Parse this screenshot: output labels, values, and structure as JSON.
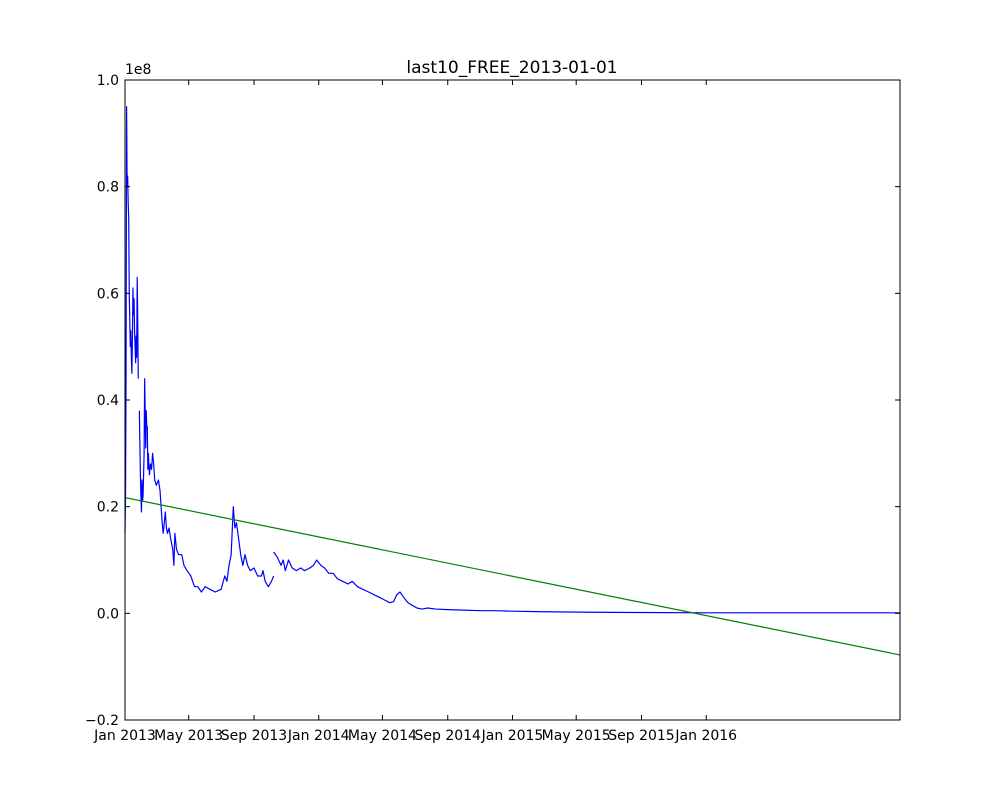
{
  "chart_data": {
    "type": "line",
    "title": "last10_FREE_2013-01-01",
    "xlabel": "",
    "ylabel": "",
    "y_offset_label": "1e8",
    "x_range": [
      "2013-01-01",
      "2016-12-31"
    ],
    "ylim": [
      -0.2,
      1.0
    ],
    "y_ticks": [
      {
        "value": -0.2,
        "label": "−0.2"
      },
      {
        "value": 0.0,
        "label": "0.0"
      },
      {
        "value": 0.2,
        "label": "0.2"
      },
      {
        "value": 0.4,
        "label": "0.4"
      },
      {
        "value": 0.6,
        "label": "0.6"
      },
      {
        "value": 0.8,
        "label": "0.8"
      },
      {
        "value": 1.0,
        "label": "1.0"
      }
    ],
    "x_ticks": [
      {
        "value": "2013-01-01",
        "label": "Jan 2013"
      },
      {
        "value": "2013-05-01",
        "label": "May 2013"
      },
      {
        "value": "2013-09-01",
        "label": "Sep 2013"
      },
      {
        "value": "2014-01-01",
        "label": "Jan 2014"
      },
      {
        "value": "2014-05-01",
        "label": "May 2014"
      },
      {
        "value": "2014-09-01",
        "label": "Sep 2014"
      },
      {
        "value": "2015-01-01",
        "label": "Jan 2015"
      },
      {
        "value": "2015-05-01",
        "label": "May 2015"
      },
      {
        "value": "2015-09-01",
        "label": "Sep 2015"
      },
      {
        "value": "2016-01-01",
        "label": "Jan 2016"
      }
    ],
    "grid": false,
    "series": [
      {
        "color": "#0000ff",
        "segments": [
          [
            [
              "2013-01-01",
              0.15
            ],
            [
              "2013-01-02",
              0.22
            ],
            [
              "2013-01-03",
              0.45
            ],
            [
              "2013-01-04",
              0.95
            ],
            [
              "2013-01-05",
              0.8
            ],
            [
              "2013-01-06",
              0.82
            ],
            [
              "2013-01-07",
              0.77
            ],
            [
              "2013-01-08",
              0.74
            ],
            [
              "2013-01-09",
              0.6
            ],
            [
              "2013-01-10",
              0.55
            ],
            [
              "2013-01-11",
              0.5
            ],
            [
              "2013-01-12",
              0.53
            ],
            [
              "2013-01-13",
              0.48
            ],
            [
              "2013-01-14",
              0.45
            ],
            [
              "2013-01-15",
              0.52
            ],
            [
              "2013-01-16",
              0.61
            ],
            [
              "2013-01-17",
              0.56
            ],
            [
              "2013-01-18",
              0.59
            ],
            [
              "2013-01-19",
              0.53
            ],
            [
              "2013-01-20",
              0.5
            ],
            [
              "2013-01-21",
              0.47
            ],
            [
              "2013-01-22",
              0.52
            ],
            [
              "2013-01-23",
              0.48
            ],
            [
              "2013-01-24",
              0.63
            ],
            [
              "2013-01-25",
              0.55
            ],
            [
              "2013-01-26",
              0.44
            ]
          ],
          [
            [
              "2013-01-28",
              0.38
            ],
            [
              "2013-01-29",
              0.32
            ],
            [
              "2013-01-30",
              0.26
            ],
            [
              "2013-01-31",
              0.22
            ],
            [
              "2013-02-01",
              0.19
            ],
            [
              "2013-02-02",
              0.25
            ],
            [
              "2013-02-03",
              0.21
            ],
            [
              "2013-02-04",
              0.22
            ],
            [
              "2013-02-06",
              0.3
            ],
            [
              "2013-02-07",
              0.44
            ],
            [
              "2013-02-08",
              0.38
            ],
            [
              "2013-02-09",
              0.31
            ],
            [
              "2013-02-10",
              0.38
            ],
            [
              "2013-02-11",
              0.35
            ],
            [
              "2013-02-12",
              0.35
            ],
            [
              "2013-02-13",
              0.27
            ],
            [
              "2013-02-14",
              0.3
            ],
            [
              "2013-02-16",
              0.26
            ],
            [
              "2013-02-18",
              0.28
            ],
            [
              "2013-02-20",
              0.27
            ],
            [
              "2013-02-22",
              0.3
            ],
            [
              "2013-02-24",
              0.28
            ],
            [
              "2013-02-26",
              0.25
            ],
            [
              "2013-03-01",
              0.24
            ],
            [
              "2013-03-05",
              0.25
            ],
            [
              "2013-03-08",
              0.23
            ],
            [
              "2013-03-10",
              0.2
            ],
            [
              "2013-03-12",
              0.17
            ],
            [
              "2013-03-14",
              0.15
            ],
            [
              "2013-03-16",
              0.17
            ],
            [
              "2013-03-18",
              0.19
            ],
            [
              "2013-03-20",
              0.16
            ],
            [
              "2013-03-22",
              0.15
            ],
            [
              "2013-03-25",
              0.16
            ],
            [
              "2013-03-28",
              0.14
            ],
            [
              "2013-04-01",
              0.12
            ],
            [
              "2013-04-03",
              0.09
            ],
            [
              "2013-04-05",
              0.15
            ],
            [
              "2013-04-08",
              0.12
            ],
            [
              "2013-04-12",
              0.11
            ],
            [
              "2013-04-18",
              0.11
            ],
            [
              "2013-04-22",
              0.09
            ],
            [
              "2013-04-28",
              0.08
            ],
            [
              "2013-05-05",
              0.07
            ],
            [
              "2013-05-12",
              0.05
            ],
            [
              "2013-05-18",
              0.05
            ],
            [
              "2013-05-25",
              0.04
            ],
            [
              "2013-06-01",
              0.05
            ],
            [
              "2013-06-10",
              0.045
            ],
            [
              "2013-06-20",
              0.04
            ],
            [
              "2013-07-01",
              0.045
            ],
            [
              "2013-07-08",
              0.07
            ],
            [
              "2013-07-12",
              0.06
            ],
            [
              "2013-07-16",
              0.09
            ],
            [
              "2013-07-20",
              0.11
            ],
            [
              "2013-07-24",
              0.2
            ],
            [
              "2013-07-27",
              0.16
            ],
            [
              "2013-07-30",
              0.17
            ],
            [
              "2013-08-03",
              0.14
            ],
            [
              "2013-08-07",
              0.11
            ],
            [
              "2013-08-11",
              0.09
            ],
            [
              "2013-08-15",
              0.11
            ],
            [
              "2013-08-20",
              0.09
            ],
            [
              "2013-08-25",
              0.08
            ],
            [
              "2013-09-01",
              0.085
            ],
            [
              "2013-09-08",
              0.07
            ],
            [
              "2013-09-15",
              0.07
            ],
            [
              "2013-09-18",
              0.08
            ],
            [
              "2013-09-22",
              0.06
            ],
            [
              "2013-09-28",
              0.05
            ],
            [
              "2013-10-04",
              0.06
            ],
            [
              "2013-10-08",
              0.07
            ]
          ],
          [
            [
              "2013-10-08",
              0.115
            ],
            [
              "2013-10-15",
              0.105
            ],
            [
              "2013-10-22",
              0.09
            ],
            [
              "2013-10-26",
              0.1
            ],
            [
              "2013-10-30",
              0.08
            ],
            [
              "2013-11-05",
              0.1
            ],
            [
              "2013-11-12",
              0.085
            ],
            [
              "2013-11-20",
              0.08
            ],
            [
              "2013-11-28",
              0.085
            ],
            [
              "2013-12-05",
              0.08
            ],
            [
              "2013-12-15",
              0.085
            ],
            [
              "2013-12-22",
              0.09
            ],
            [
              "2013-12-28",
              0.1
            ],
            [
              "2014-01-05",
              0.09
            ],
            [
              "2014-01-12",
              0.085
            ],
            [
              "2014-01-20",
              0.075
            ],
            [
              "2014-01-28",
              0.075
            ],
            [
              "2014-02-05",
              0.065
            ],
            [
              "2014-02-15",
              0.06
            ],
            [
              "2014-02-25",
              0.055
            ],
            [
              "2014-03-05",
              0.06
            ],
            [
              "2014-03-15",
              0.05
            ],
            [
              "2014-03-25",
              0.045
            ],
            [
              "2014-04-05",
              0.04
            ],
            [
              "2014-04-15",
              0.035
            ],
            [
              "2014-04-25",
              0.03
            ],
            [
              "2014-05-05",
              0.025
            ],
            [
              "2014-05-15",
              0.02
            ],
            [
              "2014-05-22",
              0.022
            ],
            [
              "2014-05-28",
              0.035
            ],
            [
              "2014-06-03",
              0.04
            ],
            [
              "2014-06-10",
              0.03
            ],
            [
              "2014-06-18",
              0.02
            ],
            [
              "2014-06-26",
              0.015
            ],
            [
              "2014-07-05",
              0.01
            ],
            [
              "2014-07-15",
              0.008
            ],
            [
              "2014-07-25",
              0.01
            ],
            [
              "2014-08-10",
              0.008
            ],
            [
              "2014-09-01",
              0.007
            ],
            [
              "2014-10-01",
              0.006
            ],
            [
              "2014-11-01",
              0.005
            ],
            [
              "2014-12-01",
              0.005
            ],
            [
              "2015-01-01",
              0.004
            ],
            [
              "2015-03-01",
              0.003
            ],
            [
              "2015-06-01",
              0.002
            ],
            [
              "2015-09-01",
              0.0015
            ],
            [
              "2016-01-01",
              0.001
            ],
            [
              "2016-06-01",
              0.001
            ],
            [
              "2016-12-31",
              0.001
            ]
          ]
        ]
      },
      {
        "color": "#008000",
        "type": "trend",
        "points": [
          [
            "2013-01-01",
            0.217
          ],
          [
            "2016-12-31",
            -0.078
          ]
        ]
      }
    ]
  }
}
